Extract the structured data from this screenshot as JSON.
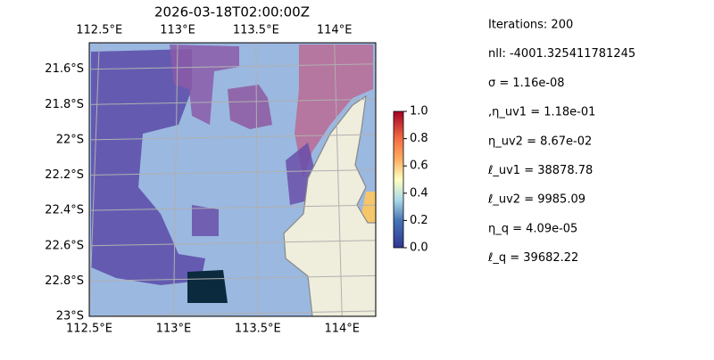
{
  "map": {
    "title": "2026-03-18T02:00:00Z",
    "lon_range": [
      112.5,
      114.2
    ],
    "lat_range": [
      -23,
      -21.45
    ],
    "lon_ticks": [
      {
        "value": 112.5,
        "label": "112.5°E"
      },
      {
        "value": 113,
        "label": "113°E"
      },
      {
        "value": 113.5,
        "label": "113.5°E"
      },
      {
        "value": 114,
        "label": "114°E"
      }
    ],
    "lat_ticks": [
      {
        "value": -21.6,
        "label": "21.6°S"
      },
      {
        "value": -21.8,
        "label": "21.8°S"
      },
      {
        "value": -22,
        "label": "22°S"
      },
      {
        "value": -22.2,
        "label": "22.2°S"
      },
      {
        "value": -22.4,
        "label": "22.4°S"
      },
      {
        "value": -22.6,
        "label": "22.6°S"
      },
      {
        "value": -22.8,
        "label": "22.8°S"
      },
      {
        "value": -23,
        "label": "23°S"
      }
    ],
    "grid": true,
    "colorbar": {
      "lim": [
        0,
        1
      ],
      "ticks": [
        {
          "value": 0,
          "label": "0.0"
        },
        {
          "value": 0.2,
          "label": "0.2"
        },
        {
          "value": 0.4,
          "label": "0.4"
        },
        {
          "value": 0.6,
          "label": "0.6"
        },
        {
          "value": 0.8,
          "label": "0.8"
        },
        {
          "value": 1,
          "label": "1.0"
        }
      ]
    }
  },
  "params": [
    "Iterations: 200",
    "nll: -4001.325411781245",
    "σ = 1.16e-08",
    ",η_uv1 = 1.18e-01",
    "η_uv2 = 8.67e-02",
    "ℓ_uv1 = 38878.78",
    "ℓ_uv2 = 9985.09",
    "η_q = 4.09e-05",
    "ℓ_q = 39682.22"
  ]
}
